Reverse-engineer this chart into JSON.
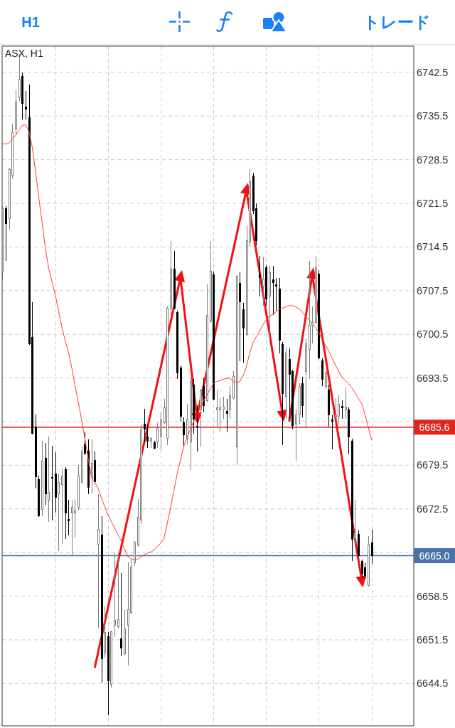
{
  "chart_data": {
    "type": "candlestick",
    "title": "ASX, H1",
    "annotations": [
      "H1",
      "トレード"
    ],
    "categories": [
      null,
      null,
      null,
      null,
      null,
      null,
      null,
      null,
      null,
      null,
      null,
      null,
      null,
      null,
      null,
      null,
      null,
      null,
      null,
      null,
      null,
      null,
      null,
      null,
      null,
      null,
      null,
      null,
      null,
      null,
      null,
      null,
      null,
      null,
      null,
      null,
      null,
      null,
      null,
      null,
      null,
      null,
      null,
      null,
      null,
      null,
      null,
      null,
      null,
      null,
      null,
      null,
      null,
      null,
      null,
      null,
      null,
      null,
      null,
      null,
      null,
      null,
      null,
      null,
      null,
      null,
      null,
      null,
      null,
      null,
      null,
      null,
      null,
      null,
      null,
      null,
      null,
      null,
      null,
      null,
      null,
      null,
      null,
      null,
      null,
      null,
      null,
      null,
      null,
      null,
      null,
      null,
      null,
      null,
      null,
      null,
      null,
      null,
      null,
      null,
      null,
      null,
      null,
      null,
      null,
      null,
      null,
      null,
      null,
      null,
      null,
      null,
      null
    ],
    "ohlc": [
      [
        6710.5,
        6721.0,
        6709.3,
        6720.7
      ],
      [
        6720.7,
        6721.1,
        6712.3,
        6718.2
      ],
      [
        6719.1,
        6727.2,
        6717.3,
        6726.9
      ],
      [
        6726.0,
        6734.3,
        6725.5,
        6732.9
      ],
      [
        6733.4,
        6739.8,
        6732.6,
        6737.8
      ],
      [
        6738.4,
        6745.5,
        6737.9,
        6741.4
      ],
      [
        6741.9,
        6742.5,
        6734.9,
        6737.5
      ],
      [
        6737.0,
        6739.5,
        6734.9,
        6736.6
      ],
      [
        6735.2,
        6740.6,
        6698.8,
        6699.0
      ],
      [
        6700.0,
        6705.7,
        6684.4,
        6684.6
      ],
      [
        6685.7,
        6687.6,
        6675.8,
        6677.7
      ],
      [
        6677.2,
        6677.8,
        6671.2,
        6671.4
      ],
      [
        6672.4,
        6683.4,
        6671.3,
        6680.2
      ],
      [
        6680.6,
        6683.1,
        6673.2,
        6674.9
      ],
      [
        6673.9,
        6684.1,
        6670.4,
        6675.2
      ],
      [
        6677.6,
        6682.6,
        6670.7,
        6677.4
      ],
      [
        6678.1,
        6681.6,
        6671.9,
        6674.4
      ],
      [
        6674.9,
        6678.1,
        6665.8,
        6676.8
      ],
      [
        6676.4,
        6679.0,
        6666.9,
        6677.8
      ],
      [
        6678.8,
        6679.2,
        6667.7,
        6671.9
      ],
      [
        6670.8,
        6674.0,
        6668.3,
        6670.6
      ],
      [
        6671.9,
        6673.8,
        6665.0,
        6672.8
      ],
      [
        6671.9,
        6674.0,
        6667.9,
        6672.2
      ],
      [
        6672.8,
        6679.6,
        6672.2,
        6677.8
      ],
      [
        6676.8,
        6682.5,
        6676.6,
        6681.7
      ],
      [
        6682.8,
        6684.8,
        6681.1,
        6681.4
      ],
      [
        6681.8,
        6683.6,
        6674.9,
        6675.9
      ],
      [
        6677.5,
        6683.7,
        6675.0,
        6679.8
      ],
      [
        6680.3,
        6681.7,
        6676.6,
        6676.9
      ],
      [
        6666.8,
        6674.9,
        6653.4,
        6669.2
      ],
      [
        6668.3,
        6671.3,
        6644.7,
        6648.5
      ],
      [
        6649.4,
        6656.9,
        6648.6,
        6652.7
      ],
      [
        6652.0,
        6652.7,
        6639.4,
        6644.9
      ],
      [
        6644.4,
        6653.0,
        6643.9,
        6652.8
      ],
      [
        6653.8,
        6665.4,
        6651.9,
        6654.6
      ],
      [
        6653.6,
        6665.4,
        6653.3,
        6654.8
      ],
      [
        6651.7,
        6662.2,
        6648.9,
        6650.2
      ],
      [
        6649.3,
        6656.3,
        6649.0,
        6653.3
      ],
      [
        6653.8,
        6663.9,
        6647.4,
        6656.3
      ],
      [
        6655.9,
        6664.4,
        6655.6,
        6663.2
      ],
      [
        6663.9,
        6667.3,
        6663.4,
        6667.1
      ],
      [
        6666.7,
        6674.1,
        6666.4,
        6671.2
      ],
      [
        6670.7,
        6686.1,
        6670.1,
        6685.2
      ],
      [
        6686.1,
        6688.6,
        6683.2,
        6685.3
      ],
      [
        6684.1,
        6686.1,
        6682.3,
        6683.4
      ],
      [
        6683.4,
        6684.0,
        6682.3,
        6683.8
      ],
      [
        6683.1,
        6683.4,
        6682.1,
        6682.2
      ],
      [
        6683.2,
        6686.3,
        6682.3,
        6685.3
      ],
      [
        6684.2,
        6688.0,
        6682.1,
        6686.8
      ],
      [
        6686.3,
        6690.1,
        6686.0,
        6688.7
      ],
      [
        6683.8,
        6705.0,
        6682.7,
        6704.7
      ],
      [
        6704.7,
        6715.5,
        6703.6,
        6711.0
      ],
      [
        6711.0,
        6713.9,
        6704.5,
        6704.7
      ],
      [
        6704.0,
        6704.3,
        6693.3,
        6694.3
      ],
      [
        6695.1,
        6695.4,
        6686.5,
        6687.4
      ],
      [
        6686.3,
        6687.2,
        6682.5,
        6684.4
      ],
      [
        6683.8,
        6689.3,
        6682.9,
        6686.9
      ],
      [
        6683.2,
        6693.5,
        6678.7,
        6692.9
      ],
      [
        6692.4,
        6693.3,
        6684.6,
        6686.9
      ],
      [
        6685.8,
        6689.1,
        6681.7,
        6685.6
      ],
      [
        6688.4,
        6691.8,
        6682.5,
        6691.5
      ],
      [
        6692.1,
        6693.5,
        6688.0,
        6689.1
      ],
      [
        6689.9,
        6708.5,
        6689.6,
        6703.6
      ],
      [
        6702.6,
        6715.5,
        6702.4,
        6710.6
      ],
      [
        6710.0,
        6710.6,
        6689.9,
        6690.1
      ],
      [
        6688.4,
        6691.6,
        6685.7,
        6688.7
      ],
      [
        6688.4,
        6690.3,
        6684.8,
        6688.7
      ],
      [
        6688.5,
        6690.5,
        6686.9,
        6688.8
      ],
      [
        6688.2,
        6690.1,
        6684.8,
        6687.8
      ],
      [
        6688.4,
        6692.2,
        6686.9,
        6690.7
      ],
      [
        6690.3,
        6694.6,
        6690.0,
        6693.7
      ],
      [
        6682.5,
        6710.0,
        6679.5,
        6709.8
      ],
      [
        6708.7,
        6710.4,
        6696.2,
        6705.7
      ],
      [
        6704.5,
        6705.5,
        6696.0,
        6701.5
      ],
      [
        6700.5,
        6718.0,
        6700.3,
        6715.5
      ],
      [
        6715.3,
        6727.1,
        6714.6,
        6725.0
      ],
      [
        6725.9,
        6726.4,
        6719.8,
        6720.3
      ],
      [
        6720.7,
        6721.5,
        6714.8,
        6715.5
      ],
      [
        6710.0,
        6713.1,
        6706.6,
        6709.6
      ],
      [
        6708.2,
        6712.9,
        6705.1,
        6709.4
      ],
      [
        6711.2,
        6711.6,
        6705.1,
        6706.2
      ],
      [
        6706.6,
        6711.5,
        6699.2,
        6710.4
      ],
      [
        6709.3,
        6711.5,
        6703.6,
        6708.8
      ],
      [
        6708.4,
        6709.5,
        6704.3,
        6708.2
      ],
      [
        6707.8,
        6709.5,
        6697.5,
        6699.6
      ],
      [
        6698.9,
        6699.3,
        6682.7,
        6691.0
      ],
      [
        6690.5,
        6698.5,
        6687.0,
        6697.5
      ],
      [
        6696.5,
        6698.3,
        6686.9,
        6694.1
      ],
      [
        6694.5,
        6694.8,
        6685.2,
        6685.9
      ],
      [
        6686.1,
        6688.6,
        6680.2,
        6687.6
      ],
      [
        6687.6,
        6692.7,
        6686.1,
        6692.2
      ],
      [
        6692.6,
        6693.7,
        6687.2,
        6689.1
      ],
      [
        6694.5,
        6699.8,
        6685.4,
        6699.0
      ],
      [
        6698.1,
        6712.3,
        6693.3,
        6701.9
      ],
      [
        6701.9,
        6705.0,
        6699.0,
        6702.4
      ],
      [
        6702.4,
        6713.1,
        6702.2,
        6711.2
      ],
      [
        6710.2,
        6710.8,
        6696.5,
        6696.7
      ],
      [
        6696.2,
        6696.6,
        6692.2,
        6693.3
      ],
      [
        6692.2,
        6694.6,
        6691.8,
        6694.3
      ],
      [
        6691.6,
        6692.4,
        6685.7,
        6687.6
      ],
      [
        6686.8,
        6687.5,
        6682.1,
        6686.6
      ],
      [
        6687.2,
        6690.3,
        6686.1,
        6687.6
      ],
      [
        6687.4,
        6690.7,
        6686.1,
        6689.3
      ],
      [
        6688.9,
        6689.9,
        6686.9,
        6688.7
      ],
      [
        6688.4,
        6692.0,
        6686.9,
        6688.8
      ],
      [
        6688.4,
        6688.8,
        6681.2,
        6684.0
      ],
      [
        6683.4,
        6683.8,
        6664.1,
        6667.6
      ],
      [
        6667.8,
        6674.0,
        6666.9,
        6668.6
      ],
      [
        6668.4,
        6669.0,
        6664.8,
        6665.0
      ],
      [
        6664.1,
        6664.4,
        6661.4,
        6662.2
      ],
      [
        6663.1,
        6663.8,
        6661.2,
        6661.8
      ],
      [
        6660.2,
        6668.1,
        6660.0,
        6666.7
      ],
      [
        6667.1,
        6669.2,
        6663.7,
        6665.0
      ]
    ],
    "series": [
      {
        "type": "line",
        "color": "#ff3b30",
        "values": [
          6731.1,
          6731.0,
          6731.2,
          6731.8,
          6732.4,
          6733.2,
          6734.0,
          6734.1,
          6733.1,
          6730.6,
          6726.8,
          6722.5,
          6718.5,
          6714.4,
          6711.1,
          6709.0,
          6706.9,
          6704.3,
          6701.7,
          6699.6,
          6697.7,
          6695.2,
          6692.3,
          6689.6,
          6686.8,
          6683.8,
          6680.6,
          6677.6,
          6676.8,
          6675.8,
          6674.3,
          6672.9,
          6671.6,
          6670.5,
          6669.5,
          6668.4,
          6667.4,
          6666.2,
          6664.9,
          6664.5,
          6664.3,
          6664.4,
          6664.8,
          6665.1,
          6665.4,
          6665.6,
          6665.9,
          6666.5,
          6667.0,
          6667.7,
          6670.2,
          6672.6,
          6675.4,
          6678.1,
          6680.3,
          6682.5,
          6684.0,
          6685.2,
          6686.5,
          6687.7,
          6688.8,
          6689.8,
          6690.7,
          6691.7,
          6692.6,
          6692.9,
          6693.1,
          6693.3,
          6693.4,
          6693.5,
          6692.9,
          6692.8,
          6692.9,
          6693.8,
          6695.2,
          6697.5,
          6699.1,
          6700.1,
          6701.0,
          6702.0,
          6702.8,
          6703.4,
          6703.7,
          6704.1,
          6704.5,
          6704.7,
          6704.9,
          6705.1,
          6705.1,
          6704.9,
          6704.6,
          6704.0,
          6703.4,
          6702.8,
          6702.2,
          6701.6,
          6700.7,
          6699.7,
          6698.8,
          6697.8,
          6696.7,
          6695.6,
          6694.6,
          6693.6,
          6693.1,
          6692.6,
          6691.9,
          6691.1,
          6690.2,
          6689.4,
          6687.6,
          6685.6,
          6683.5
        ]
      },
      {
        "type": "line",
        "color": "#f21111",
        "marker": "triangle",
        "values": [
          null,
          null,
          null,
          null,
          null,
          null,
          null,
          null,
          null,
          null,
          null,
          null,
          null,
          null,
          null,
          null,
          null,
          null,
          null,
          null,
          null,
          null,
          null,
          null,
          null,
          null,
          null,
          null,
          6647.0,
          null,
          null,
          null,
          null,
          null,
          null,
          null,
          null,
          null,
          null,
          null,
          null,
          null,
          null,
          null,
          null,
          null,
          null,
          null,
          null,
          null,
          null,
          null,
          null,
          null,
          6709.6,
          null,
          null,
          null,
          null,
          6687.3,
          null,
          null,
          null,
          null,
          null,
          null,
          null,
          null,
          null,
          null,
          null,
          null,
          null,
          null,
          6723.6,
          null,
          null,
          null,
          null,
          null,
          null,
          null,
          null,
          null,
          null,
          6687.7,
          null,
          null,
          null,
          null,
          null,
          null,
          null,
          null,
          null,
          null,
          null,
          null,
          null,
          null,
          null,
          null,
          null,
          null,
          null,
          null,
          null,
          null,
          null,
          null,
          null,
          null,
          null
        ]
      },
      {
        "type": "line",
        "color": "#f21111",
        "marker": "triangle",
        "values": [
          null,
          null,
          null,
          null,
          null,
          null,
          null,
          null,
          null,
          null,
          null,
          null,
          null,
          null,
          null,
          null,
          null,
          null,
          null,
          null,
          null,
          null,
          null,
          null,
          null,
          null,
          null,
          null,
          null,
          null,
          null,
          null,
          null,
          null,
          null,
          null,
          null,
          null,
          null,
          null,
          null,
          null,
          null,
          null,
          null,
          null,
          null,
          null,
          null,
          null,
          null,
          null,
          null,
          null,
          null,
          null,
          null,
          null,
          null,
          null,
          null,
          null,
          null,
          null,
          null,
          null,
          null,
          null,
          null,
          null,
          null,
          null,
          null,
          null,
          null,
          null,
          null,
          null,
          null,
          null,
          null,
          null,
          null,
          null,
          null,
          null,
          null,
          6686.5,
          null,
          null,
          null,
          null,
          null,
          null,
          6710.0,
          null,
          null,
          null,
          null,
          null,
          null,
          null,
          null,
          null,
          null,
          null,
          null,
          null,
          null,
          6661.1,
          null,
          null,
          null
        ]
      }
    ],
    "ylim": [
      6637.7,
      6746.7
    ],
    "yticks": [
      6742.5,
      6735.5,
      6728.5,
      6721.5,
      6714.5,
      6707.5,
      6700.5,
      6693.5,
      {
        "value": 6686.5,
        "label": null
      },
      6679.5,
      6672.5,
      {
        "value": 6665.5,
        "label": null
      },
      6658.5,
      6651.5,
      6644.5
    ],
    "ref_lines": [
      {
        "axis": "y",
        "value": 6685.6,
        "label": "6685.6",
        "color": "#e3261c"
      },
      {
        "axis": "y",
        "value": 6665.0,
        "label": "6665.0",
        "color": "#4a74a8"
      }
    ],
    "grid": true
  }
}
